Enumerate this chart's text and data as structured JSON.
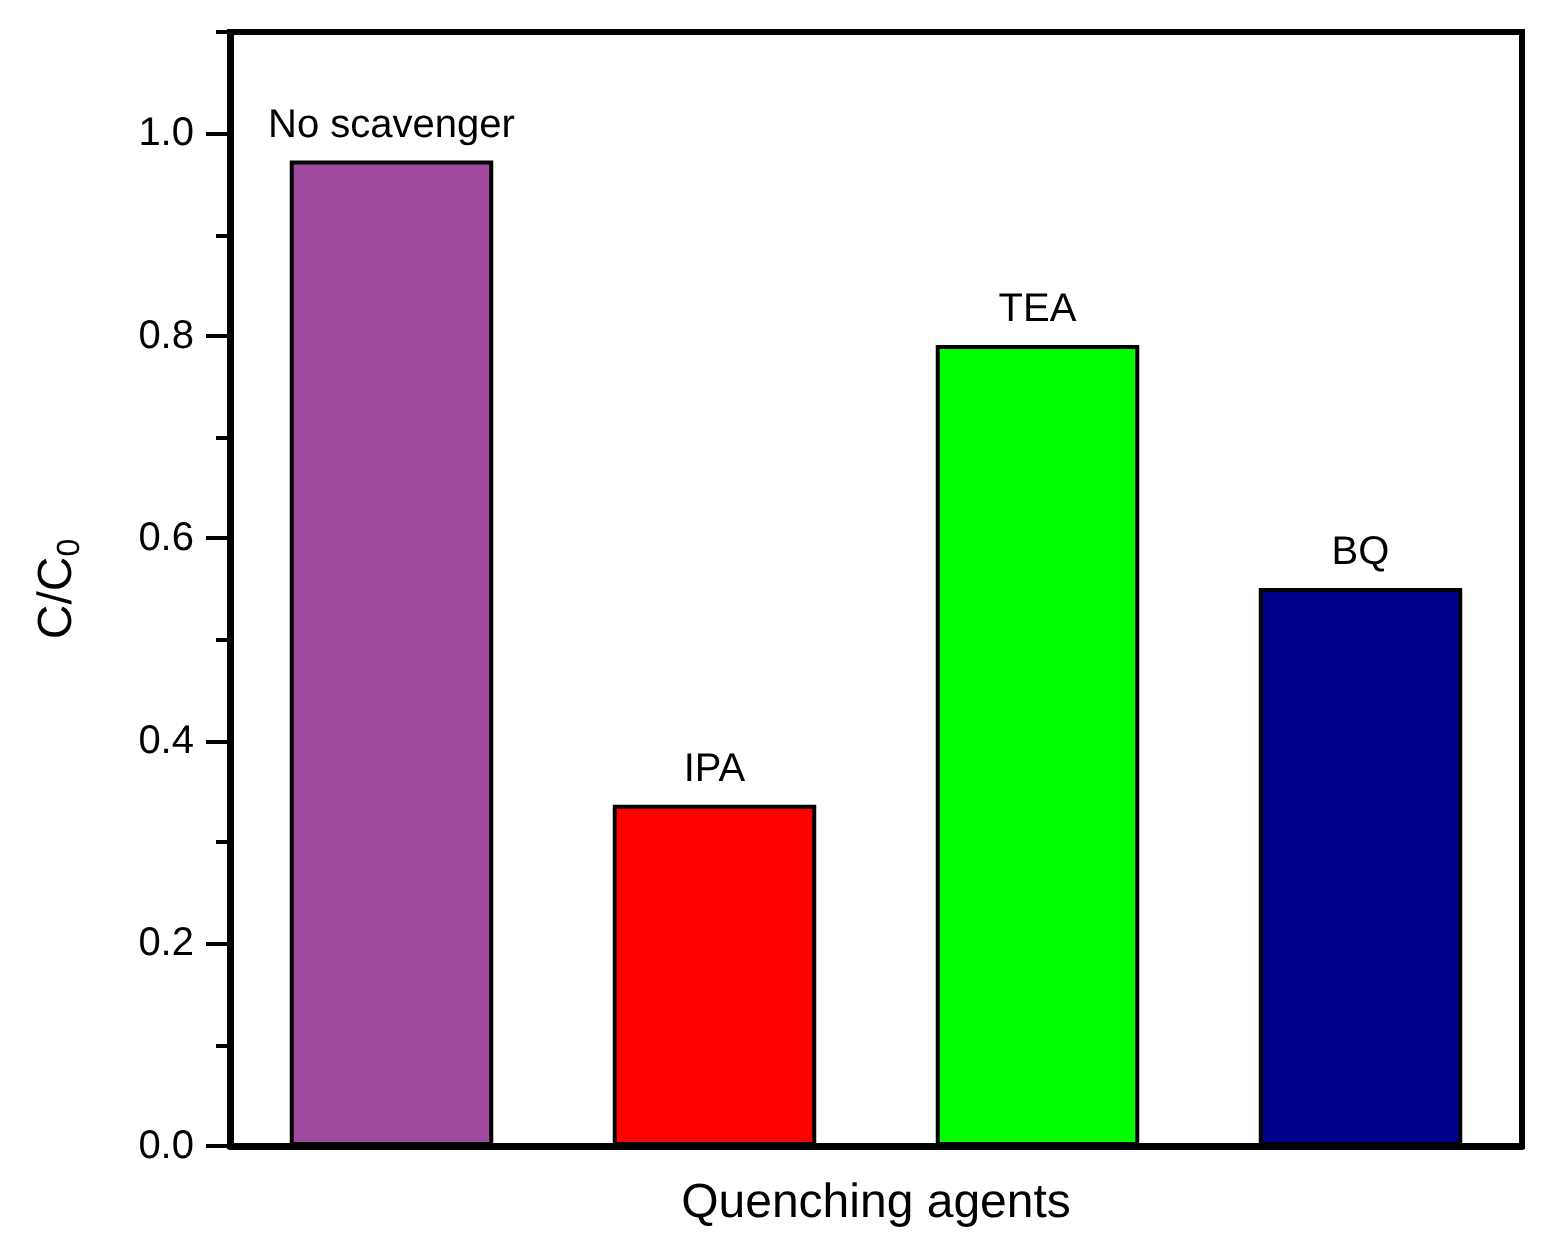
{
  "chart_data": {
    "type": "bar",
    "xlabel": "Quenching agents",
    "ylabel": "C/C$_{0}$",
    "categories": [
      "No scavenger",
      "IPA",
      "TEA",
      "BQ"
    ],
    "values": [
      0.973,
      0.337,
      0.791,
      0.551
    ],
    "colors": [
      "#a04a9e",
      "#ff0000",
      "#00ff00",
      "#00008b"
    ],
    "ylim": [
      0,
      1.1
    ],
    "yticks": [
      {
        "value": 0,
        "label": "0.0"
      },
      {
        "value": 0.2,
        "label": "0.2"
      },
      {
        "value": 0.4,
        "label": "0.4"
      },
      {
        "value": 0.6,
        "label": "0.6"
      },
      {
        "value": 0.8,
        "label": "0.8"
      },
      {
        "value": 1,
        "label": "1.0"
      }
    ],
    "tick_labels": "y"
  }
}
